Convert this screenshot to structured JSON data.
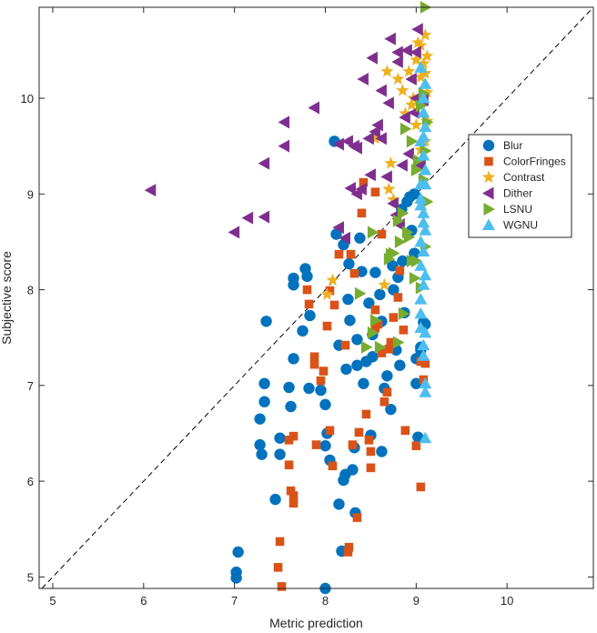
{
  "chart_data": {
    "type": "scatter",
    "xlabel": "Metric prediction",
    "ylabel": "Subjective score",
    "xlim": [
      4.85,
      10.95
    ],
    "ylim": [
      4.88,
      10.95
    ],
    "xticks": [
      5,
      6,
      7,
      8,
      9,
      10
    ],
    "yticks": [
      5,
      6,
      7,
      8,
      9,
      10
    ],
    "reference_line": "dashed diagonal y = x",
    "legend_position": "right",
    "grid": false,
    "series": [
      {
        "name": "Blur",
        "marker": "circle",
        "color": "#0072BD",
        "points": [
          [
            7.04,
            5.26
          ],
          [
            7.02,
            5.05
          ],
          [
            7.02,
            4.99
          ],
          [
            7.45,
            5.81
          ],
          [
            7.3,
            6.28
          ],
          [
            7.28,
            6.38
          ],
          [
            7.28,
            6.65
          ],
          [
            7.33,
            6.83
          ],
          [
            7.33,
            7.02
          ],
          [
            7.35,
            7.67
          ],
          [
            7.5,
            6.45
          ],
          [
            7.5,
            6.28
          ],
          [
            7.6,
            6.98
          ],
          [
            7.62,
            6.78
          ],
          [
            7.65,
            8.05
          ],
          [
            7.65,
            8.12
          ],
          [
            7.65,
            7.28
          ],
          [
            7.75,
            7.57
          ],
          [
            7.78,
            8.22
          ],
          [
            7.8,
            8.14
          ],
          [
            7.83,
            7.73
          ],
          [
            7.82,
            6.97
          ],
          [
            7.95,
            6.95
          ],
          [
            8.0,
            6.8
          ],
          [
            8.02,
            6.5
          ],
          [
            8.0,
            6.37
          ],
          [
            8.05,
            6.22
          ],
          [
            8.0,
            4.88
          ],
          [
            8.1,
            9.55
          ],
          [
            8.12,
            8.58
          ],
          [
            8.15,
            5.76
          ],
          [
            8.2,
            8.47
          ],
          [
            8.15,
            7.42
          ],
          [
            8.18,
            5.27
          ],
          [
            8.22,
            6.07
          ],
          [
            8.2,
            6.01
          ],
          [
            8.23,
            7.17
          ],
          [
            8.25,
            7.9
          ],
          [
            8.26,
            8.27
          ],
          [
            8.27,
            7.68
          ],
          [
            8.3,
            6.12
          ],
          [
            8.32,
            6.35
          ],
          [
            8.33,
            5.67
          ],
          [
            8.35,
            7.21
          ],
          [
            8.35,
            7.48
          ],
          [
            8.38,
            8.54
          ],
          [
            8.4,
            8.19
          ],
          [
            8.42,
            7.02
          ],
          [
            8.45,
            7.25
          ],
          [
            8.48,
            7.86
          ],
          [
            8.5,
            6.48
          ],
          [
            8.52,
            7.53
          ],
          [
            8.52,
            7.3
          ],
          [
            8.55,
            8.18
          ],
          [
            8.6,
            7.95
          ],
          [
            8.62,
            7.67
          ],
          [
            8.65,
            6.97
          ],
          [
            8.68,
            7.1
          ],
          [
            8.72,
            6.75
          ],
          [
            8.74,
            8.25
          ],
          [
            8.75,
            8.0
          ],
          [
            8.78,
            7.37
          ],
          [
            8.8,
            8.13
          ],
          [
            8.82,
            7.21
          ],
          [
            8.84,
            8.84
          ],
          [
            8.85,
            8.3
          ],
          [
            8.87,
            7.76
          ],
          [
            8.9,
            8.92
          ],
          [
            8.93,
            8.97
          ],
          [
            8.95,
            8.62
          ],
          [
            8.98,
            8.38
          ],
          [
            8.98,
            9.0
          ],
          [
            9.0,
            7.28
          ],
          [
            9.05,
            7.37
          ],
          [
            9.05,
            7.4
          ],
          [
            9.08,
            7.66
          ],
          [
            9.1,
            7.64
          ],
          [
            8.62,
            6.31
          ],
          [
            9.0,
            7.02
          ],
          [
            9.02,
            6.46
          ]
        ]
      },
      {
        "name": "ColorFringes",
        "marker": "square",
        "color": "#D95319",
        "points": [
          [
            7.5,
            5.37
          ],
          [
            7.48,
            5.1
          ],
          [
            7.52,
            4.9
          ],
          [
            7.6,
            6.43
          ],
          [
            7.6,
            6.17
          ],
          [
            7.62,
            5.9
          ],
          [
            7.65,
            5.85
          ],
          [
            7.65,
            5.77
          ],
          [
            7.65,
            6.47
          ],
          [
            7.8,
            8.0
          ],
          [
            7.82,
            7.85
          ],
          [
            7.88,
            7.22
          ],
          [
            7.88,
            7.3
          ],
          [
            7.9,
            6.38
          ],
          [
            7.95,
            7.05
          ],
          [
            7.98,
            7.15
          ],
          [
            8.02,
            7.62
          ],
          [
            8.05,
            7.99
          ],
          [
            8.05,
            6.53
          ],
          [
            8.08,
            6.16
          ],
          [
            8.1,
            7.84
          ],
          [
            8.15,
            8.37
          ],
          [
            8.22,
            7.42
          ],
          [
            8.25,
            5.26
          ],
          [
            8.26,
            5.31
          ],
          [
            8.28,
            8.37
          ],
          [
            8.3,
            6.38
          ],
          [
            8.32,
            8.17
          ],
          [
            8.35,
            5.62
          ],
          [
            8.37,
            6.51
          ],
          [
            8.4,
            8.8
          ],
          [
            8.42,
            9.12
          ],
          [
            8.45,
            6.7
          ],
          [
            8.48,
            6.43
          ],
          [
            8.5,
            6.14
          ],
          [
            8.5,
            6.31
          ],
          [
            8.55,
            7.6
          ],
          [
            8.55,
            7.79
          ],
          [
            8.58,
            7.64
          ],
          [
            8.62,
            8.58
          ],
          [
            8.62,
            7.34
          ],
          [
            8.65,
            6.83
          ],
          [
            8.68,
            6.93
          ],
          [
            8.7,
            7.38
          ],
          [
            8.72,
            7.45
          ],
          [
            8.75,
            7.71
          ],
          [
            8.8,
            7.92
          ],
          [
            8.82,
            8.2
          ],
          [
            8.86,
            7.58
          ],
          [
            8.88,
            6.53
          ],
          [
            9.0,
            6.37
          ],
          [
            9.05,
            5.94
          ],
          [
            9.05,
            7.25
          ],
          [
            9.08,
            7.06
          ],
          [
            9.1,
            7.23
          ],
          [
            8.55,
            9.02
          ]
        ]
      },
      {
        "name": "Contrast",
        "marker": "star",
        "color": "#EDB120",
        "points": [
          [
            8.02,
            7.95
          ],
          [
            8.08,
            8.1
          ],
          [
            8.55,
            9.58
          ],
          [
            8.65,
            8.05
          ],
          [
            8.7,
            9.05
          ],
          [
            8.72,
            9.32
          ],
          [
            8.75,
            8.94
          ],
          [
            8.8,
            10.2
          ],
          [
            8.85,
            10.08
          ],
          [
            8.88,
            9.84
          ],
          [
            8.92,
            10.28
          ],
          [
            8.95,
            9.93
          ],
          [
            8.97,
            10.0
          ],
          [
            9.0,
            10.4
          ],
          [
            9.02,
            10.58
          ],
          [
            9.05,
            10.22
          ],
          [
            9.05,
            10.55
          ],
          [
            9.08,
            10.36
          ],
          [
            9.1,
            10.66
          ],
          [
            9.1,
            10.26
          ],
          [
            9.12,
            10.44
          ],
          [
            9.12,
            10.06
          ],
          [
            9.12,
            9.76
          ],
          [
            9.1,
            9.55
          ],
          [
            8.68,
            10.28
          ],
          [
            9.0,
            9.72
          ],
          [
            9.05,
            9.46
          ]
        ]
      },
      {
        "name": "Dither",
        "marker": "triangle-left",
        "color": "#7E2F8E",
        "points": [
          [
            6.08,
            9.04
          ],
          [
            7.0,
            8.6
          ],
          [
            7.15,
            8.75
          ],
          [
            7.33,
            8.76
          ],
          [
            7.33,
            9.32
          ],
          [
            7.55,
            9.5
          ],
          [
            7.55,
            9.75
          ],
          [
            7.88,
            9.9
          ],
          [
            8.15,
            8.65
          ],
          [
            8.15,
            9.52
          ],
          [
            8.22,
            8.54
          ],
          [
            8.25,
            9.55
          ],
          [
            8.28,
            9.06
          ],
          [
            8.32,
            9.5
          ],
          [
            8.35,
            9.0
          ],
          [
            8.35,
            9.48
          ],
          [
            8.4,
            9.05
          ],
          [
            8.42,
            10.2
          ],
          [
            8.48,
            9.58
          ],
          [
            8.52,
            10.42
          ],
          [
            8.55,
            9.65
          ],
          [
            8.58,
            9.72
          ],
          [
            8.62,
            9.58
          ],
          [
            8.68,
            9.18
          ],
          [
            8.7,
            9.95
          ],
          [
            8.72,
            10.62
          ],
          [
            8.75,
            8.9
          ],
          [
            8.78,
            8.78
          ],
          [
            8.8,
            10.38
          ],
          [
            8.82,
            8.68
          ],
          [
            8.85,
            9.3
          ],
          [
            8.88,
            9.8
          ],
          [
            8.9,
            10.5
          ],
          [
            8.92,
            9.42
          ],
          [
            8.95,
            10.2
          ],
          [
            8.98,
            9.85
          ],
          [
            9.0,
            10.0
          ],
          [
            9.02,
            10.72
          ],
          [
            9.05,
            9.3
          ],
          [
            9.08,
            9.98
          ],
          [
            8.62,
            10.08
          ],
          [
            8.5,
            9.2
          ],
          [
            8.8,
            10.48
          ],
          [
            9.0,
            10.48
          ]
        ]
      },
      {
        "name": "LSNU",
        "marker": "triangle-right",
        "color": "#77AC30",
        "points": [
          [
            8.38,
            7.96
          ],
          [
            8.45,
            7.4
          ],
          [
            8.52,
            7.55
          ],
          [
            8.52,
            8.6
          ],
          [
            8.55,
            7.68
          ],
          [
            8.6,
            7.4
          ],
          [
            8.7,
            8.32
          ],
          [
            8.72,
            8.37
          ],
          [
            8.75,
            8.38
          ],
          [
            8.8,
            7.45
          ],
          [
            8.8,
            8.72
          ],
          [
            8.82,
            8.5
          ],
          [
            8.85,
            8.8
          ],
          [
            8.86,
            7.75
          ],
          [
            8.88,
            9.68
          ],
          [
            8.9,
            8.6
          ],
          [
            8.92,
            8.55
          ],
          [
            8.95,
            9.55
          ],
          [
            8.98,
            8.12
          ],
          [
            9.0,
            9.25
          ],
          [
            9.02,
            9.35
          ],
          [
            9.05,
            9.92
          ],
          [
            9.08,
            10.05
          ],
          [
            9.08,
            9.15
          ],
          [
            9.1,
            10.95
          ],
          [
            9.1,
            8.45
          ],
          [
            9.12,
            9.75
          ],
          [
            9.12,
            8.92
          ],
          [
            9.0,
            8.3
          ],
          [
            8.95,
            8.3
          ],
          [
            9.05,
            8.02
          ],
          [
            9.1,
            9.45
          ]
        ]
      },
      {
        "name": "WGNU",
        "marker": "triangle-up",
        "color": "#4DBEEE",
        "points": [
          [
            9.1,
            6.45
          ],
          [
            9.1,
            6.93
          ],
          [
            9.1,
            7.02
          ],
          [
            9.08,
            7.31
          ],
          [
            9.08,
            7.42
          ],
          [
            9.05,
            7.6
          ],
          [
            9.05,
            7.75
          ],
          [
            9.05,
            7.9
          ],
          [
            9.08,
            8.05
          ],
          [
            9.1,
            8.15
          ],
          [
            9.05,
            8.25
          ],
          [
            9.08,
            8.4
          ],
          [
            9.05,
            8.5
          ],
          [
            9.1,
            8.62
          ],
          [
            9.08,
            8.8
          ],
          [
            9.05,
            8.95
          ],
          [
            9.05,
            9.1
          ],
          [
            9.1,
            9.25
          ],
          [
            9.08,
            9.4
          ],
          [
            9.05,
            9.55
          ],
          [
            9.1,
            9.7
          ],
          [
            9.08,
            9.85
          ],
          [
            9.08,
            10.0
          ],
          [
            9.1,
            10.15
          ],
          [
            9.05,
            10.32
          ],
          [
            9.08,
            8.7
          ],
          [
            9.1,
            7.55
          ],
          [
            9.05,
            8.88
          ],
          [
            9.1,
            9.1
          ],
          [
            9.08,
            9.6
          ]
        ]
      }
    ]
  }
}
